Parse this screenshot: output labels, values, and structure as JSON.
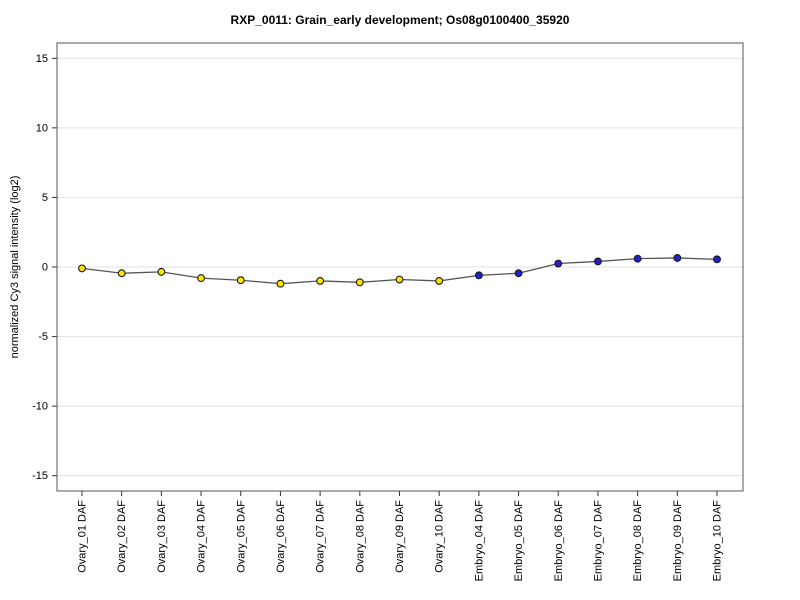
{
  "title": "RXP_0011: Grain_early development; Os08g0100400_35920",
  "chart_data": {
    "type": "line",
    "title": "RXP_0011: Grain_early development; Os08g0100400_35920",
    "xlabel": "",
    "ylabel": "normalized Cy3 signal intensity (log2)",
    "ylim": [
      -16.1,
      16.1
    ],
    "yticks": [
      15,
      10,
      5,
      0,
      -5,
      -10,
      -15
    ],
    "grid": true,
    "legend": "none",
    "categories": [
      "Ovary_01 DAF",
      "Ovary_02 DAF",
      "Ovary_03 DAF",
      "Ovary_04 DAF",
      "Ovary_05 DAF",
      "Ovary_06 DAF",
      "Ovary_07 DAF",
      "Ovary_08 DAF",
      "Ovary_09 DAF",
      "Ovary_10 DAF",
      "Embryo_04 DAF",
      "Embryo_05 DAF",
      "Embryo_06 DAF",
      "Embryo_07 DAF",
      "Embryo_08 DAF",
      "Embryo_09 DAF",
      "Embryo_10 DAF"
    ],
    "values": [
      -0.1,
      -0.45,
      -0.35,
      -0.8,
      -0.95,
      -1.2,
      -1.0,
      -1.1,
      -0.9,
      -1.0,
      -0.6,
      -0.45,
      0.25,
      0.4,
      0.6,
      0.65,
      0.55
    ],
    "point_groups": [
      "ovary",
      "ovary",
      "ovary",
      "ovary",
      "ovary",
      "ovary",
      "ovary",
      "ovary",
      "ovary",
      "ovary",
      "embryo",
      "embryo",
      "embryo",
      "embryo",
      "embryo",
      "embryo",
      "embryo"
    ],
    "colors": {
      "ovary_point": "#ffe400",
      "embryo_point": "#2222cc",
      "point_outline": "#1a1a1a",
      "line": "#555555",
      "grid": "#e2e2e2",
      "frame": "#555555",
      "tick": "#333333",
      "text": "#000000",
      "background": "#ffffff"
    }
  }
}
